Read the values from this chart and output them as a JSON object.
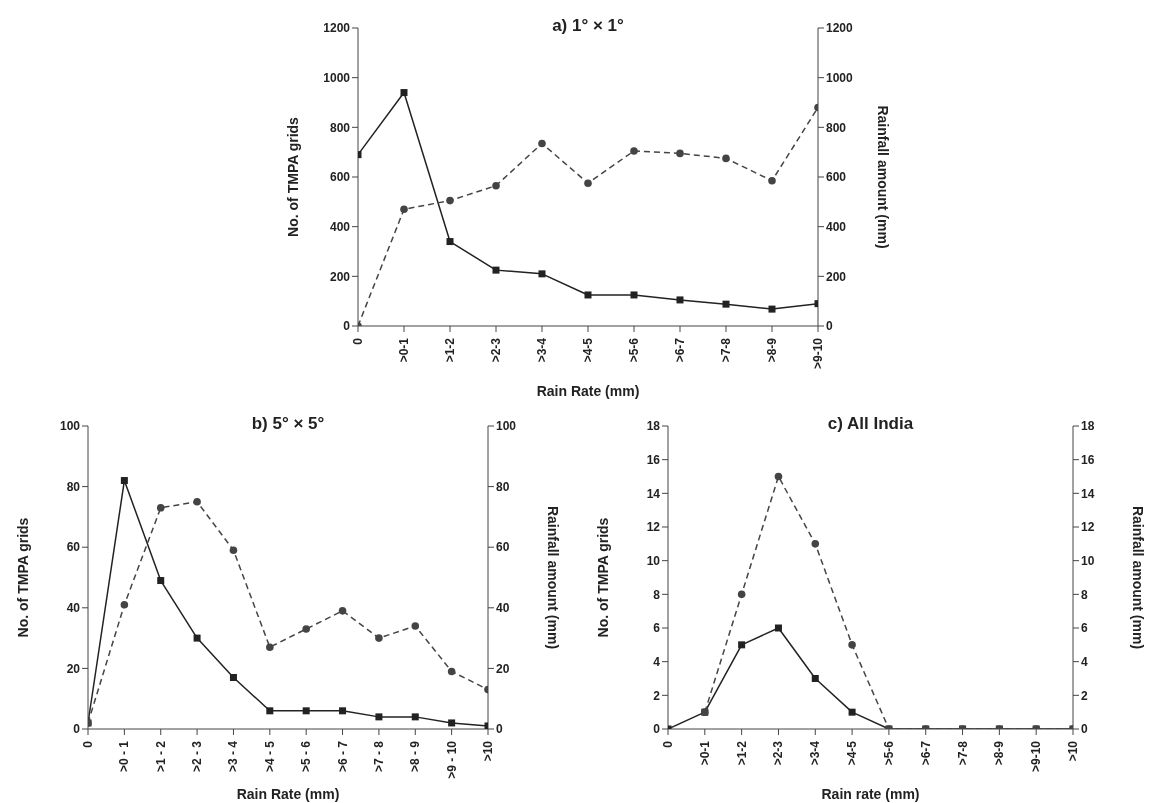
{
  "chart_data": [
    {
      "type": "line",
      "title": "a) 1° × 1°",
      "xlabel": "Rain Rate (mm)",
      "ylabel": "No. of TMPA grids",
      "y2label": "Rainfall amount (mm)",
      "categories": [
        "0",
        ">0-1",
        ">1-2",
        ">2-3",
        ">3-4",
        ">4-5",
        ">5-6",
        ">6-7",
        ">7-8",
        ">8-9",
        ">9-10"
      ],
      "ylim": [
        0,
        1200
      ],
      "yticks": [
        0,
        200,
        400,
        600,
        800,
        1000,
        1200
      ],
      "y2lim": [
        0,
        1200
      ],
      "y2ticks": [
        0,
        200,
        400,
        600,
        800,
        1000,
        1200
      ],
      "grid": false,
      "series": [
        {
          "color": "#222222",
          "marker": "square",
          "line_style": "solid",
          "values": [
            690,
            940,
            340,
            225,
            210,
            125,
            125,
            105,
            88,
            68,
            90
          ]
        },
        {
          "color": "#444444",
          "marker": "circle",
          "line_style": "dashed",
          "axis": "y2",
          "values": [
            0,
            470,
            505,
            565,
            735,
            575,
            705,
            695,
            675,
            585,
            880
          ]
        }
      ]
    },
    {
      "type": "line",
      "title": "b) 5° × 5°",
      "xlabel": "Rain Rate (mm)",
      "ylabel": "No. of TMPA grids",
      "y2label": "Rainfall amount (mm)",
      "categories": [
        "0",
        ">0 - 1",
        ">1 - 2",
        ">2 - 3",
        ">3 - 4",
        ">4 - 5",
        ">5 - 6",
        ">6 - 7",
        ">7 - 8",
        ">8 - 9",
        ">9 - 10",
        ">10"
      ],
      "ylim": [
        0,
        100
      ],
      "yticks": [
        0,
        20,
        40,
        60,
        80,
        100
      ],
      "y2lim": [
        0,
        100
      ],
      "y2ticks": [
        0,
        20,
        40,
        60,
        80,
        100
      ],
      "grid": false,
      "series": [
        {
          "color": "#222222",
          "marker": "square",
          "line_style": "solid",
          "values": [
            2,
            82,
            49,
            30,
            17,
            6,
            6,
            6,
            4,
            4,
            2,
            1
          ]
        },
        {
          "color": "#444444",
          "marker": "circle",
          "line_style": "dashed",
          "axis": "y2",
          "values": [
            2,
            41,
            73,
            75,
            59,
            27,
            33,
            39,
            30,
            34,
            19,
            13
          ]
        }
      ]
    },
    {
      "type": "line",
      "title": "c) All India",
      "xlabel": "Rain rate (mm)",
      "ylabel": "No. of TMPA grids",
      "y2label": "Rainfall amount (mm)",
      "categories": [
        "0",
        ">0-1",
        ">1-2",
        ">2-3",
        ">3-4",
        ">4-5",
        ">5-6",
        ">6-7",
        ">7-8",
        ">8-9",
        ">9-10",
        ">10"
      ],
      "ylim": [
        0,
        18
      ],
      "yticks": [
        0,
        2,
        4,
        6,
        8,
        10,
        12,
        14,
        16,
        18
      ],
      "y2lim": [
        0,
        18
      ],
      "y2ticks": [
        0,
        2,
        4,
        6,
        8,
        10,
        12,
        14,
        16,
        18
      ],
      "grid": false,
      "series": [
        {
          "color": "#222222",
          "marker": "square",
          "line_style": "solid",
          "values": [
            0,
            1,
            5,
            6,
            3,
            1,
            0,
            0,
            0,
            0,
            0,
            0
          ]
        },
        {
          "color": "#444444",
          "marker": "circle",
          "line_style": "dashed",
          "axis": "y2",
          "values": [
            null,
            1,
            8,
            15,
            11,
            5,
            0,
            0,
            0,
            0,
            0,
            0
          ]
        }
      ]
    }
  ]
}
